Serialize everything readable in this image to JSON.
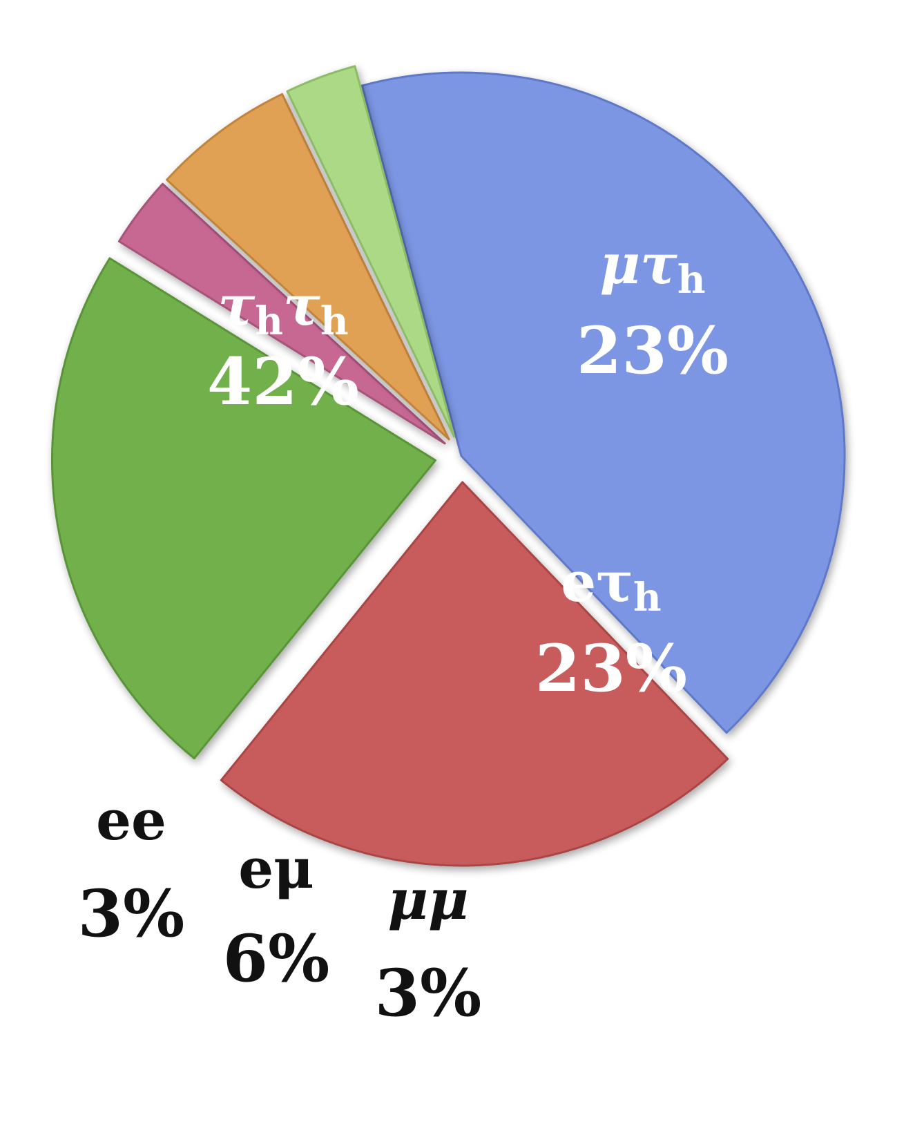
{
  "chart_data": {
    "type": "pie",
    "title": "",
    "slices": [
      {
        "label": "τhτh",
        "label_main": "τ",
        "label_sub": "h",
        "label_main2": "τ",
        "label_sub2": "h",
        "value": 42,
        "percent_label": "42%",
        "color": "#7b96e3",
        "edge": "#5e78c8",
        "label_placement": "inside",
        "exploded": false
      },
      {
        "label": "μτh",
        "label_main": "μτ",
        "label_sub": "h",
        "value": 23,
        "percent_label": "23%",
        "color": "#c85c5c",
        "edge": "#a94545",
        "label_placement": "inside",
        "exploded": true
      },
      {
        "label": "eτh",
        "label_main": "eτ",
        "label_sub": "h",
        "value": 23,
        "percent_label": "23%",
        "color": "#71b04b",
        "edge": "#5a9438",
        "label_placement": "inside",
        "exploded": true
      },
      {
        "label": "μμ",
        "label_main": "μμ",
        "value": 3,
        "percent_label": "3%",
        "color": "#c76893",
        "edge": "#a8527a",
        "label_placement": "outside",
        "exploded": true
      },
      {
        "label": "eμ",
        "label_main": "eμ",
        "value": 6,
        "percent_label": "6%",
        "color": "#e1a154",
        "edge": "#c2843a",
        "label_placement": "outside",
        "exploded": true
      },
      {
        "label": "ee",
        "label_main": "ee",
        "value": 3,
        "percent_label": "3%",
        "color": "#acd986",
        "edge": "#8cbd66",
        "label_placement": "outside",
        "exploded": true
      }
    ],
    "legend": "none"
  }
}
